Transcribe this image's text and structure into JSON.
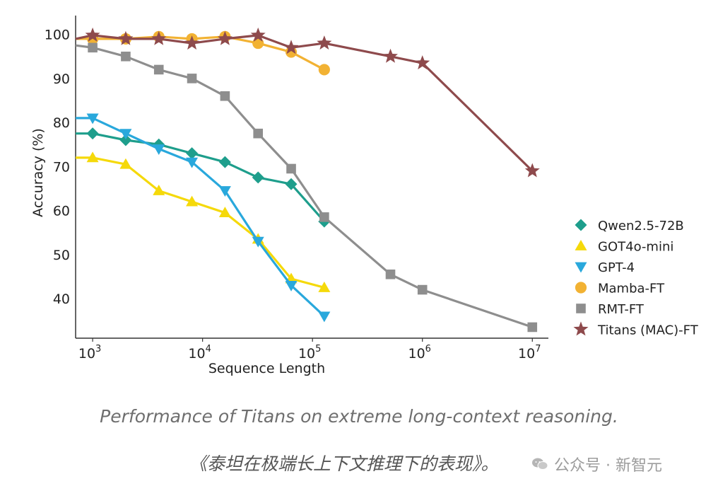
{
  "chart_data": {
    "type": "line",
    "xscale": "log",
    "xlabel": "Sequence Length",
    "ylabel": "Accuracy (%)",
    "xlim": [
      700,
      14000000
    ],
    "ylim": [
      31,
      103
    ],
    "yticks": [
      40,
      50,
      60,
      70,
      80,
      90,
      100
    ],
    "xticks": [
      {
        "value": 1000,
        "label": "10",
        "exp": "3"
      },
      {
        "value": 10000,
        "label": "10",
        "exp": "4"
      },
      {
        "value": 100000,
        "label": "10",
        "exp": "5"
      },
      {
        "value": 1000000,
        "label": "10",
        "exp": "6"
      },
      {
        "value": 10000000,
        "label": "10",
        "exp": "7"
      }
    ],
    "grid": false,
    "legend_position": "right",
    "series": [
      {
        "name": "Qwen2.5-72B",
        "color": "#1e9e8c",
        "marker": "diamond",
        "x": [
          700,
          1000,
          2000,
          4000,
          8000,
          16000,
          32000,
          64000,
          128000
        ],
        "y": [
          77.5,
          77.5,
          76,
          75,
          73,
          71,
          67.5,
          66,
          57.5
        ]
      },
      {
        "name": "GOT4o-mini",
        "color": "#f5d90a",
        "marker": "triangle-up",
        "x": [
          700,
          1000,
          2000,
          4000,
          8000,
          16000,
          32000,
          64000,
          128000
        ],
        "y": [
          72,
          72,
          70.5,
          64.5,
          62,
          59.5,
          53.5,
          44.5,
          42.5
        ]
      },
      {
        "name": "GPT-4",
        "color": "#29a8dc",
        "marker": "triangle-down",
        "x": [
          700,
          1000,
          2000,
          4000,
          8000,
          16000,
          32000,
          64000,
          128000
        ],
        "y": [
          81,
          81,
          77.5,
          74,
          71,
          64.5,
          53,
          43,
          36
        ]
      },
      {
        "name": "Mamba-FT",
        "color": "#f2b233",
        "marker": "circle",
        "x": [
          700,
          1000,
          2000,
          4000,
          8000,
          16000,
          32000,
          64000,
          128000
        ],
        "y": [
          99,
          99,
          99,
          99.5,
          99,
          99.5,
          98,
          96,
          92
        ]
      },
      {
        "name": "RMT-FT",
        "color": "#8e8e8e",
        "marker": "square",
        "x": [
          700,
          1000,
          2000,
          4000,
          8000,
          16000,
          32000,
          64000,
          128000,
          512000,
          1000000,
          10000000
        ],
        "y": [
          97.5,
          97,
          95,
          92,
          90,
          86,
          77.5,
          69.5,
          58.5,
          45.5,
          42,
          33.5
        ]
      },
      {
        "name": "Titans (MAC)-FT",
        "color": "#8e4a4c",
        "marker": "star",
        "x": [
          700,
          1000,
          2000,
          4000,
          8000,
          16000,
          32000,
          64000,
          128000,
          512000,
          1000000,
          10000000
        ],
        "y": [
          99,
          99.8,
          99,
          99,
          98,
          99,
          99.8,
          97,
          98,
          95,
          93.5,
          69
        ]
      }
    ]
  },
  "caption": {
    "english": "Performance of Titans on extreme long-context reasoning.",
    "chinese": "《泰坦在极端长上下文推理下的表现》。"
  },
  "watermark": {
    "text": "公众号 · 新智元",
    "icon": "wechat-icon"
  }
}
